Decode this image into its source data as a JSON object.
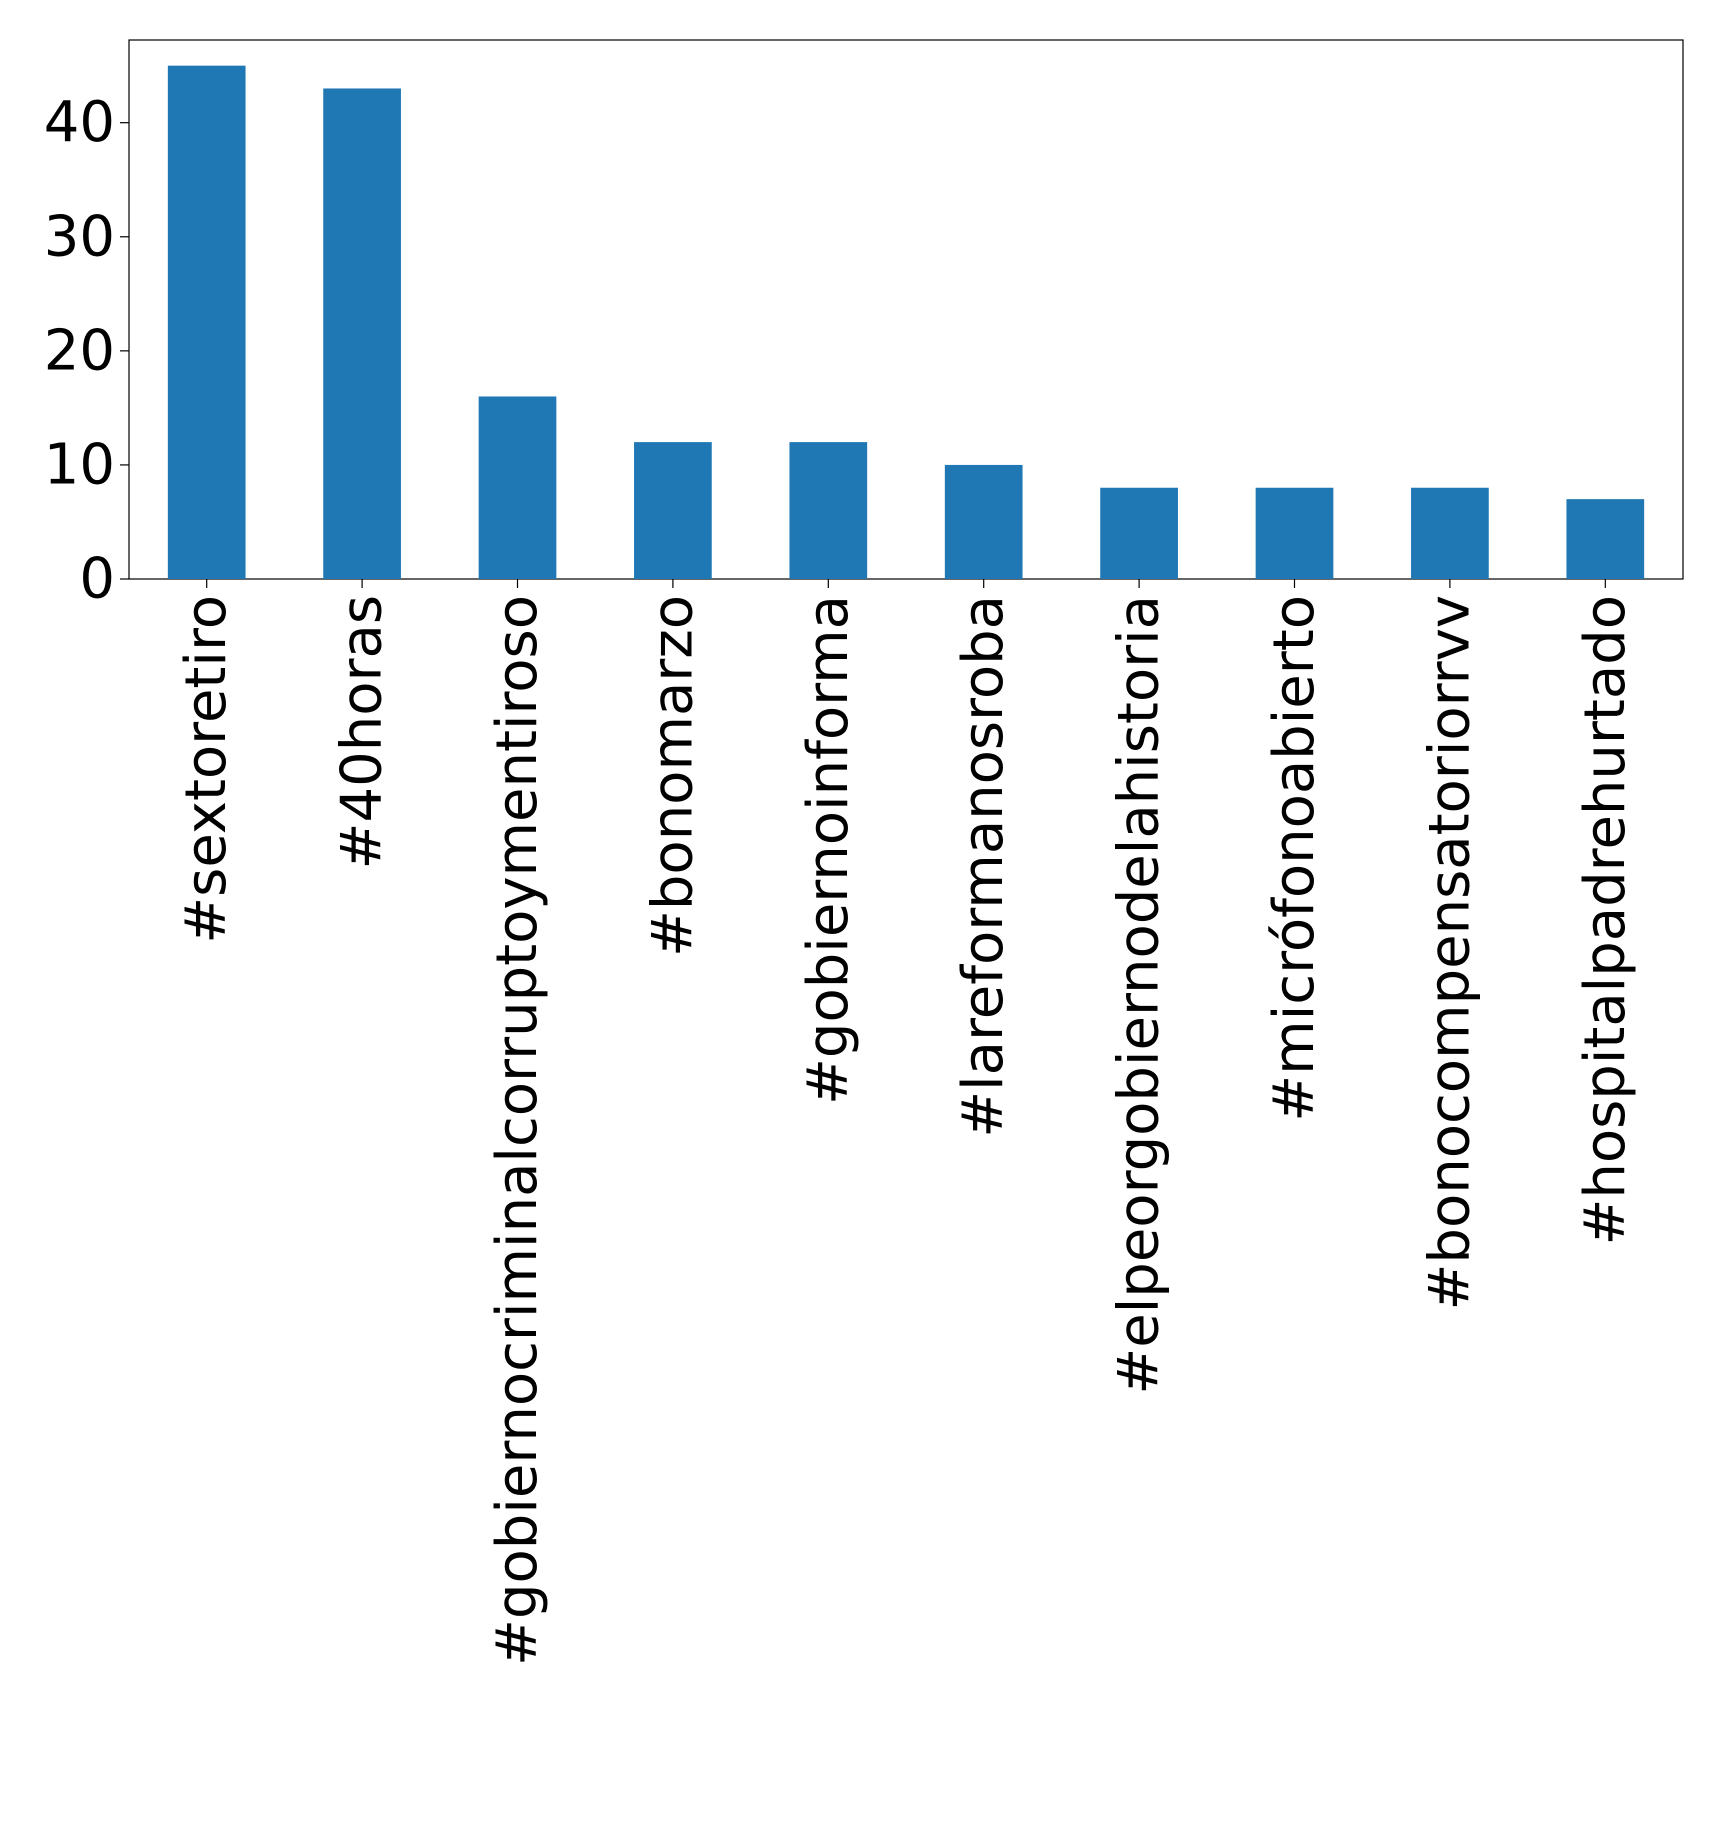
{
  "chart_data": {
    "type": "bar",
    "categories": [
      "#sextoretiro",
      "#40horas",
      "#gobiernocriminalcorruptoymentiroso",
      "#bonomarzo",
      "#gobiernoinforma",
      "#lareformanosroba",
      "#elpeorgobiernodelahistoria",
      "#micrófonoabierto",
      "#bonocompensatoriorrvv",
      "#hospitalpadrehurtado"
    ],
    "values": [
      45,
      43,
      16,
      12,
      12,
      10,
      8,
      8,
      8,
      7
    ],
    "color": "#1f77b4",
    "ylim": [
      0,
      47.25
    ],
    "yticks": [
      0,
      10,
      20,
      30,
      40
    ],
    "grid": false
  }
}
